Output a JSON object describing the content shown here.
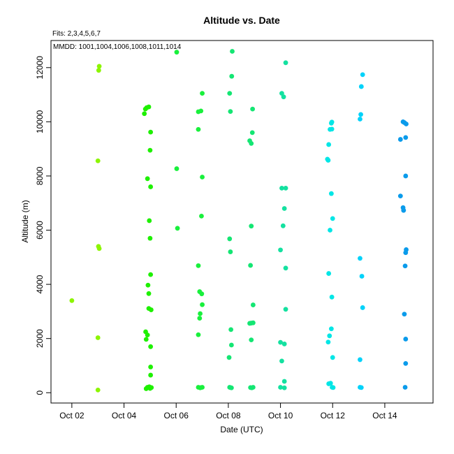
{
  "chart_data": {
    "type": "scatter",
    "title": "Altitude  vs. Date",
    "subtitle": "Fits: 2,3,4,5,6,7",
    "annotation": "MMDD: 1001,1004,1006,1008,1011,1014",
    "xlabel": "Date (UTC)",
    "ylabel": "Altitude (m)",
    "x_unit": "day of October",
    "xlim": [
      1.2,
      15.85
    ],
    "ylim": [
      -380,
      13000
    ],
    "x_ticks": [
      {
        "value": 2,
        "label": "Oct 02"
      },
      {
        "value": 4,
        "label": "Oct 04"
      },
      {
        "value": 6,
        "label": "Oct 06"
      },
      {
        "value": 8,
        "label": "Oct 08"
      },
      {
        "value": 10,
        "label": "Oct 10"
      },
      {
        "value": 12,
        "label": "Oct 12"
      },
      {
        "value": 14,
        "label": "Oct 14"
      }
    ],
    "y_ticks": [
      {
        "value": 0,
        "label": "0"
      },
      {
        "value": 2000,
        "label": "2000"
      },
      {
        "value": 4000,
        "label": "4000"
      },
      {
        "value": 6000,
        "label": "6000"
      },
      {
        "value": 8000,
        "label": "8000"
      },
      {
        "value": 10000,
        "label": "10000"
      },
      {
        "value": 12000,
        "label": "12000"
      }
    ],
    "grid": false,
    "series": [
      {
        "color": "#8cf500",
        "points": [
          [
            2.0,
            3400
          ],
          [
            3.0,
            100
          ],
          [
            3.0,
            2030
          ],
          [
            3.02,
            5400
          ],
          [
            3.05,
            5320
          ],
          [
            3.0,
            8560
          ],
          [
            3.03,
            11900
          ],
          [
            3.05,
            12050
          ]
        ]
      },
      {
        "color": "#1ef000",
        "points": [
          [
            4.78,
            10300
          ],
          [
            4.82,
            10470
          ],
          [
            4.95,
            10550
          ],
          [
            4.87,
            10520
          ],
          [
            5.02,
            9620
          ],
          [
            5.0,
            8950
          ],
          [
            4.9,
            7900
          ],
          [
            5.02,
            7600
          ],
          [
            4.97,
            6350
          ],
          [
            5.0,
            5700
          ],
          [
            5.02,
            4360
          ],
          [
            4.92,
            3970
          ],
          [
            4.95,
            3660
          ],
          [
            4.95,
            3110
          ],
          [
            5.04,
            3060
          ],
          [
            4.83,
            2250
          ],
          [
            4.9,
            2130
          ],
          [
            4.85,
            1970
          ],
          [
            5.02,
            1700
          ],
          [
            5.02,
            950
          ],
          [
            5.02,
            650
          ],
          [
            4.85,
            150
          ],
          [
            4.9,
            200
          ],
          [
            4.97,
            220
          ],
          [
            5.05,
            190
          ],
          [
            5.0,
            160
          ]
        ]
      },
      {
        "color": "#19f03c",
        "points": [
          [
            6.02,
            12570
          ],
          [
            6.02,
            8270
          ],
          [
            6.05,
            6070
          ],
          [
            6.85,
            10370
          ],
          [
            6.95,
            10400
          ],
          [
            7.0,
            11050
          ],
          [
            6.85,
            9720
          ],
          [
            7.0,
            7960
          ],
          [
            6.97,
            6520
          ],
          [
            6.85,
            4690
          ],
          [
            6.9,
            3730
          ],
          [
            6.98,
            3650
          ],
          [
            7.0,
            3250
          ],
          [
            6.92,
            2920
          ],
          [
            6.9,
            2750
          ],
          [
            6.85,
            2140
          ],
          [
            6.85,
            200
          ],
          [
            6.92,
            180
          ],
          [
            7.0,
            200
          ],
          [
            6.95,
            190
          ]
        ]
      },
      {
        "color": "#14e673",
        "points": [
          [
            8.15,
            12600
          ],
          [
            8.13,
            11680
          ],
          [
            8.05,
            11050
          ],
          [
            8.08,
            10380
          ],
          [
            8.05,
            5680
          ],
          [
            8.08,
            5200
          ],
          [
            8.1,
            2330
          ],
          [
            8.12,
            1760
          ],
          [
            8.03,
            1300
          ],
          [
            8.05,
            200
          ],
          [
            8.12,
            180
          ],
          [
            8.08,
            190
          ],
          [
            8.93,
            10470
          ],
          [
            8.92,
            9600
          ],
          [
            8.82,
            9300
          ],
          [
            8.88,
            9200
          ],
          [
            8.88,
            6150
          ],
          [
            8.85,
            4700
          ],
          [
            8.95,
            3240
          ],
          [
            8.88,
            2570
          ],
          [
            8.95,
            2580
          ],
          [
            8.82,
            2560
          ],
          [
            8.88,
            1950
          ],
          [
            8.85,
            190
          ],
          [
            8.95,
            200
          ],
          [
            8.9,
            180
          ]
        ]
      },
      {
        "color": "#14e1a0",
        "points": [
          [
            10.2,
            12180
          ],
          [
            10.05,
            11050
          ],
          [
            10.12,
            10920
          ],
          [
            10.05,
            7550
          ],
          [
            10.2,
            7550
          ],
          [
            10.15,
            6800
          ],
          [
            10.1,
            6160
          ],
          [
            10.0,
            5270
          ],
          [
            10.2,
            4600
          ],
          [
            10.2,
            3080
          ],
          [
            10.0,
            1860
          ],
          [
            10.15,
            1800
          ],
          [
            10.05,
            1170
          ],
          [
            10.15,
            420
          ],
          [
            10.0,
            200
          ],
          [
            10.15,
            180
          ]
        ]
      },
      {
        "color": "#00e6e6",
        "points": [
          [
            11.97,
            9990
          ],
          [
            11.95,
            9950
          ],
          [
            11.9,
            9720
          ],
          [
            11.97,
            9730
          ],
          [
            11.85,
            9160
          ],
          [
            11.8,
            8620
          ],
          [
            11.83,
            8580
          ],
          [
            11.95,
            7350
          ],
          [
            12.0,
            6430
          ],
          [
            11.9,
            6000
          ],
          [
            11.85,
            4400
          ],
          [
            11.97,
            3530
          ],
          [
            11.95,
            2360
          ],
          [
            11.88,
            2100
          ],
          [
            11.83,
            1870
          ],
          [
            12.0,
            1300
          ],
          [
            11.85,
            330
          ],
          [
            11.92,
            350
          ],
          [
            11.98,
            200
          ],
          [
            12.02,
            190
          ]
        ]
      },
      {
        "color": "#00d2fa",
        "points": [
          [
            13.15,
            11740
          ],
          [
            13.1,
            11300
          ],
          [
            13.08,
            10270
          ],
          [
            13.05,
            10100
          ],
          [
            13.05,
            4960
          ],
          [
            13.12,
            4300
          ],
          [
            13.15,
            3140
          ],
          [
            13.05,
            1220
          ],
          [
            13.05,
            200
          ],
          [
            13.1,
            190
          ]
        ]
      },
      {
        "color": "#0a9beb",
        "points": [
          [
            14.7,
            10000
          ],
          [
            14.75,
            9970
          ],
          [
            14.82,
            9920
          ],
          [
            14.8,
            9420
          ],
          [
            14.6,
            9350
          ],
          [
            14.8,
            8000
          ],
          [
            14.6,
            7260
          ],
          [
            14.7,
            6830
          ],
          [
            14.72,
            6730
          ],
          [
            14.82,
            5280
          ],
          [
            14.8,
            5170
          ],
          [
            14.78,
            4680
          ],
          [
            14.75,
            2900
          ],
          [
            14.8,
            1980
          ],
          [
            14.8,
            1080
          ],
          [
            14.78,
            200
          ]
        ]
      }
    ]
  }
}
